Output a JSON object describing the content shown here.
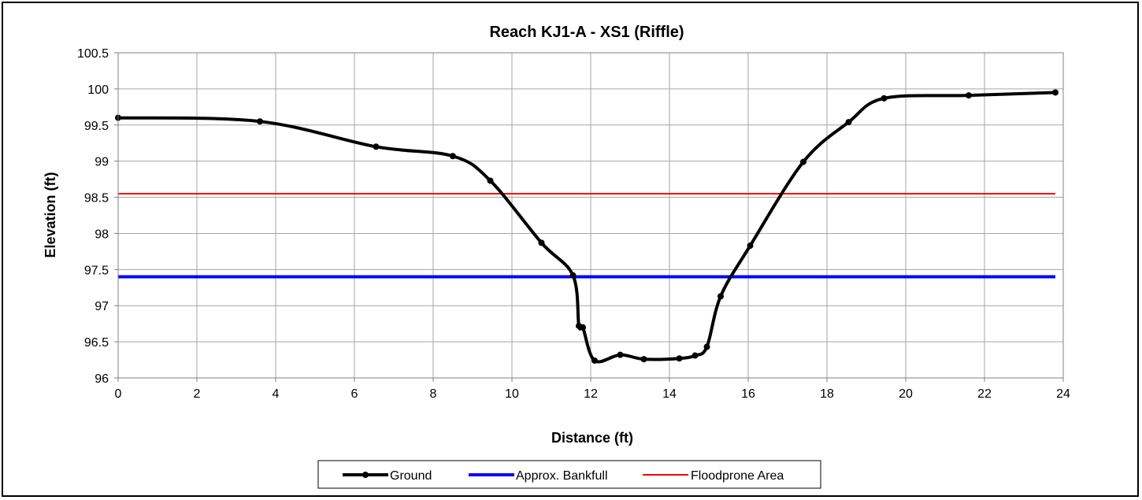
{
  "chart_data": {
    "type": "line",
    "title": "Reach KJ1-A - XS1 (Riffle)",
    "xlabel": "Distance (ft)",
    "ylabel": "Elevation (ft)",
    "xlim": [
      0,
      24
    ],
    "ylim": [
      96,
      100.5
    ],
    "x_ticks": [
      0,
      2,
      4,
      6,
      8,
      10,
      12,
      14,
      16,
      18,
      20,
      22,
      24
    ],
    "y_ticks": [
      96,
      96.5,
      97,
      97.5,
      98,
      98.5,
      99,
      99.5,
      100,
      100.5
    ],
    "x_tick_labels": [
      "0",
      "2",
      "4",
      "6",
      "8",
      "10",
      "12",
      "14",
      "16",
      "18",
      "20",
      "22",
      "24"
    ],
    "y_tick_labels": [
      "96",
      "96.5",
      "97",
      "97.5",
      "98",
      "98.5",
      "99",
      "99.5",
      "100",
      "100.5"
    ],
    "grid": true,
    "legend_position": "bottom",
    "series": [
      {
        "name": "Ground",
        "color": "#000000",
        "markers": true,
        "x": [
          0,
          3.6,
          6.55,
          8.5,
          9.45,
          10.75,
          11.55,
          11.7,
          11.8,
          12.1,
          12.75,
          13.35,
          14.25,
          14.65,
          14.95,
          15.3,
          16.05,
          17.4,
          18.55,
          19.45,
          21.6,
          23.8
        ],
        "y": [
          99.6,
          99.55,
          99.2,
          99.07,
          98.73,
          97.87,
          97.42,
          96.72,
          96.7,
          96.24,
          96.32,
          96.26,
          96.27,
          96.31,
          96.43,
          97.13,
          97.83,
          98.99,
          99.54,
          99.87,
          99.91,
          99.95
        ]
      },
      {
        "name": "Approx. Bankfull",
        "color": "#0000ff",
        "markers": false,
        "x": [
          0,
          23.8
        ],
        "y": [
          97.4,
          97.4
        ]
      },
      {
        "name": "Floodprone Area",
        "color": "#ff0000",
        "markers": false,
        "x": [
          0,
          23.8
        ],
        "y": [
          98.55,
          98.55
        ]
      }
    ]
  }
}
